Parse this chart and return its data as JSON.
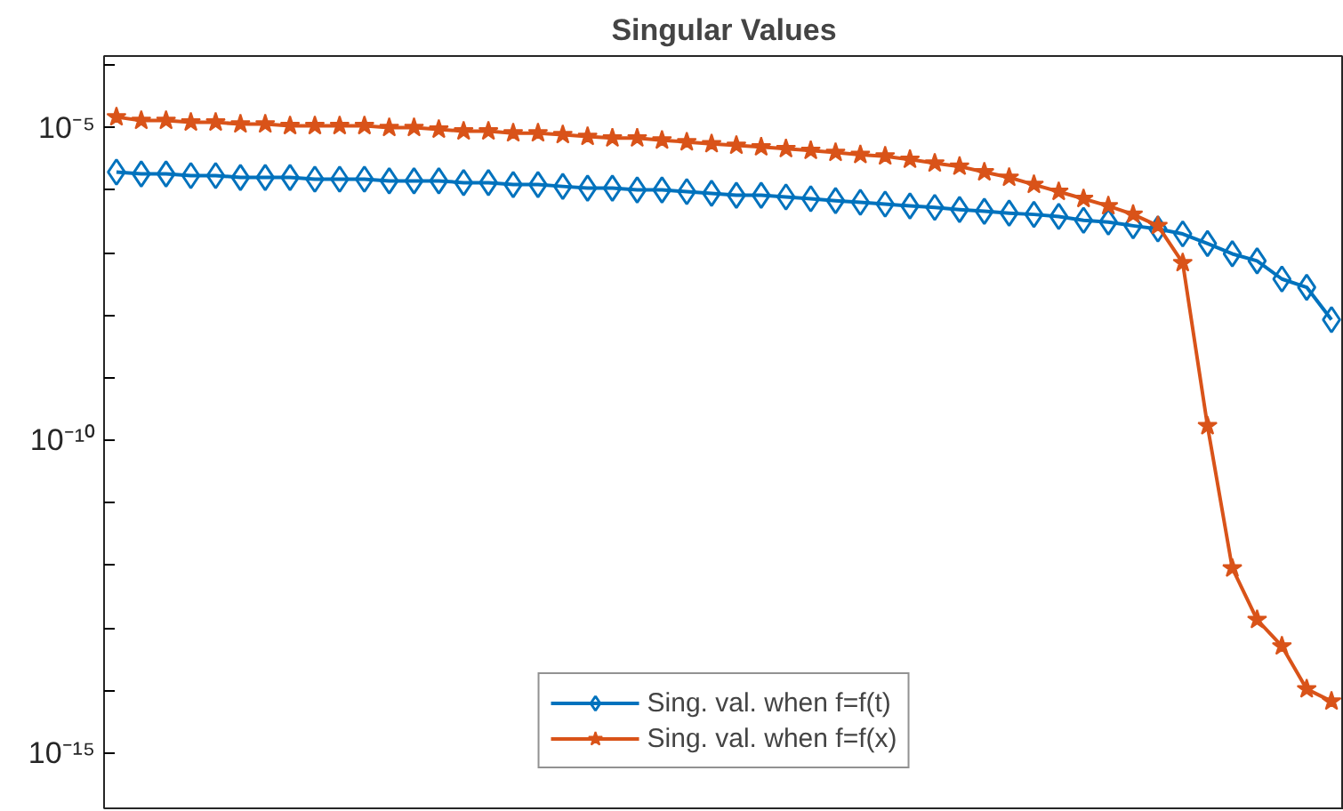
{
  "chart_data": {
    "type": "line",
    "title": "Singular Values",
    "log": "y",
    "grid": false,
    "legend": "bottom",
    "tick_labels": "y",
    "categories": [
      null,
      null,
      null,
      null,
      null,
      null,
      null,
      null,
      null,
      null,
      null,
      null,
      null,
      null,
      null,
      null,
      null,
      null,
      null,
      null,
      null,
      null,
      null,
      null,
      null,
      null,
      null,
      null,
      null,
      null,
      null,
      null,
      null,
      null,
      null,
      null,
      null,
      null,
      null,
      null,
      null,
      null,
      null,
      null,
      null,
      null,
      null,
      null,
      null,
      null
    ],
    "ylim": [
      1.3e-16,
      0.00014
    ],
    "yticks": [
      {
        "value": 0.0001,
        "label": null
      },
      {
        "value": 1e-05,
        "label": "10⁻⁵"
      },
      {
        "value": 1e-06,
        "label": null
      },
      {
        "value": 1e-07,
        "label": null
      },
      {
        "value": 1e-08,
        "label": null
      },
      {
        "value": 1e-09,
        "label": null
      },
      {
        "value": 1e-10,
        "label": "10⁻¹⁰"
      },
      {
        "value": 1e-11,
        "label": null
      },
      {
        "value": 1e-12,
        "label": null
      },
      {
        "value": 1e-13,
        "label": null
      },
      {
        "value": 1e-14,
        "label": null
      },
      {
        "value": 1e-15,
        "label": "10⁻¹⁵"
      }
    ],
    "series": [
      {
        "name": "Sing. val. when f=f(t)",
        "color": "#0072bd",
        "marker": "diamond",
        "line_style": "solid",
        "values": [
          1.95e-06,
          1.82e-06,
          1.82e-06,
          1.71e-06,
          1.71e-06,
          1.6e-06,
          1.6e-06,
          1.6e-06,
          1.5e-06,
          1.5e-06,
          1.5e-06,
          1.41e-06,
          1.41e-06,
          1.41e-06,
          1.32e-06,
          1.32e-06,
          1.23e-06,
          1.23e-06,
          1.15e-06,
          1.08e-06,
          1.08e-06,
          1.01e-06,
          1.01e-06,
          9.5e-07,
          8.9e-07,
          8.3e-07,
          8.3e-07,
          7.8e-07,
          7.3e-07,
          6.8e-07,
          6.4e-07,
          6e-07,
          5.6e-07,
          5.3e-07,
          4.9e-07,
          4.6e-07,
          4.3e-07,
          4.1e-07,
          3.8e-07,
          3.3e-07,
          3.1e-07,
          2.7e-07,
          2.4e-07,
          2e-07,
          1.4e-07,
          9.6e-08,
          7.4e-08,
          3.8e-08,
          2.8e-08,
          8.5e-09
        ]
      },
      {
        "name": "Sing. val. when f=f(x)",
        "color": "#d95319",
        "marker": "star",
        "line_style": "solid",
        "values": [
          1.48e-05,
          1.3e-05,
          1.3e-05,
          1.22e-05,
          1.22e-05,
          1.14e-05,
          1.14e-05,
          1.07e-05,
          1.07e-05,
          1.07e-05,
          1.07e-05,
          1e-05,
          1e-05,
          9.4e-06,
          8.8e-06,
          8.8e-06,
          8.2e-06,
          8.2e-06,
          7.7e-06,
          7.2e-06,
          6.8e-06,
          6.8e-06,
          6.3e-06,
          5.9e-06,
          5.5e-06,
          5.2e-06,
          4.9e-06,
          4.6e-06,
          4.3e-06,
          4e-06,
          3.7e-06,
          3.5e-06,
          3.1e-06,
          2.7e-06,
          2.4e-06,
          1.95e-06,
          1.6e-06,
          1.23e-06,
          9.5e-07,
          7.3e-07,
          5.6e-07,
          4.1e-07,
          2.7e-07,
          6.9e-08,
          1.7e-10,
          9e-13,
          1.35e-13,
          5.1e-14,
          1.05e-14,
          6.7e-15
        ]
      }
    ]
  }
}
